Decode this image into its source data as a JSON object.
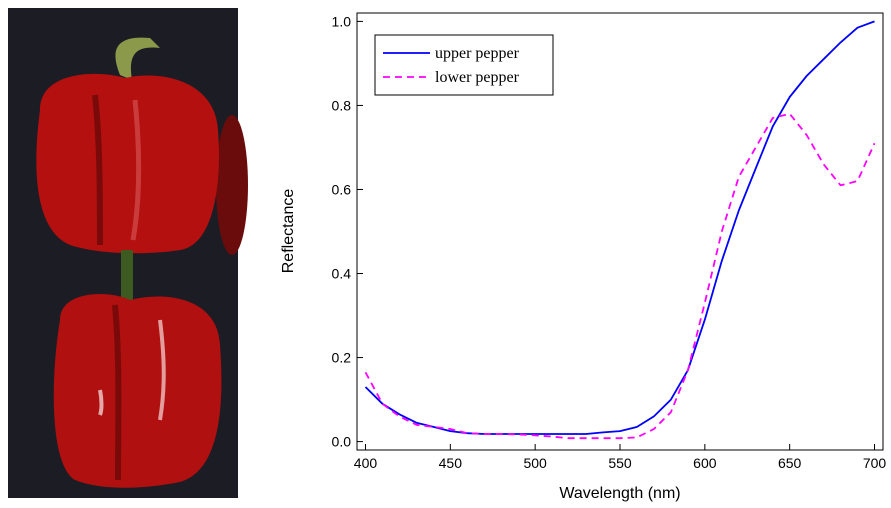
{
  "chart_data": {
    "type": "line",
    "x_label": "Wavelength (nm)",
    "y_label": "Reflectance",
    "x": [
      400,
      410,
      420,
      430,
      440,
      450,
      460,
      470,
      480,
      490,
      500,
      510,
      520,
      530,
      540,
      550,
      560,
      570,
      580,
      590,
      600,
      610,
      620,
      630,
      640,
      650,
      660,
      670,
      680,
      690,
      700
    ],
    "series": [
      {
        "name": "upper pepper",
        "color": "#0000ff",
        "dash": false,
        "values": [
          0.13,
          0.09,
          0.065,
          0.045,
          0.035,
          0.025,
          0.02,
          0.018,
          0.018,
          0.018,
          0.018,
          0.018,
          0.018,
          0.018,
          0.022,
          0.025,
          0.035,
          0.06,
          0.1,
          0.17,
          0.29,
          0.43,
          0.55,
          0.65,
          0.75,
          0.82,
          0.87,
          0.91,
          0.95,
          0.985,
          1.0
        ]
      },
      {
        "name": "lower pepper",
        "color": "#ff00ff",
        "dash": true,
        "values": [
          0.165,
          0.09,
          0.06,
          0.04,
          0.035,
          0.03,
          0.02,
          0.018,
          0.018,
          0.017,
          0.015,
          0.012,
          0.008,
          0.008,
          0.008,
          0.008,
          0.01,
          0.03,
          0.07,
          0.17,
          0.33,
          0.5,
          0.63,
          0.7,
          0.77,
          0.78,
          0.73,
          0.66,
          0.61,
          0.62,
          0.71
        ]
      }
    ],
    "xlim": [
      395,
      705
    ],
    "ylim": [
      -0.02,
      1.02
    ],
    "xticks": [
      400,
      450,
      500,
      550,
      600,
      650,
      700
    ],
    "yticks": [
      {
        "value": 0,
        "label": "0.0"
      },
      {
        "value": 0.2,
        "label": "0.2"
      },
      {
        "value": 0.4,
        "label": "0.4"
      },
      {
        "value": 0.6,
        "label": "0.6"
      },
      {
        "value": 0.8,
        "label": "0.8"
      },
      {
        "value": 1,
        "label": "1.0"
      }
    ],
    "legend": "upper-left"
  }
}
